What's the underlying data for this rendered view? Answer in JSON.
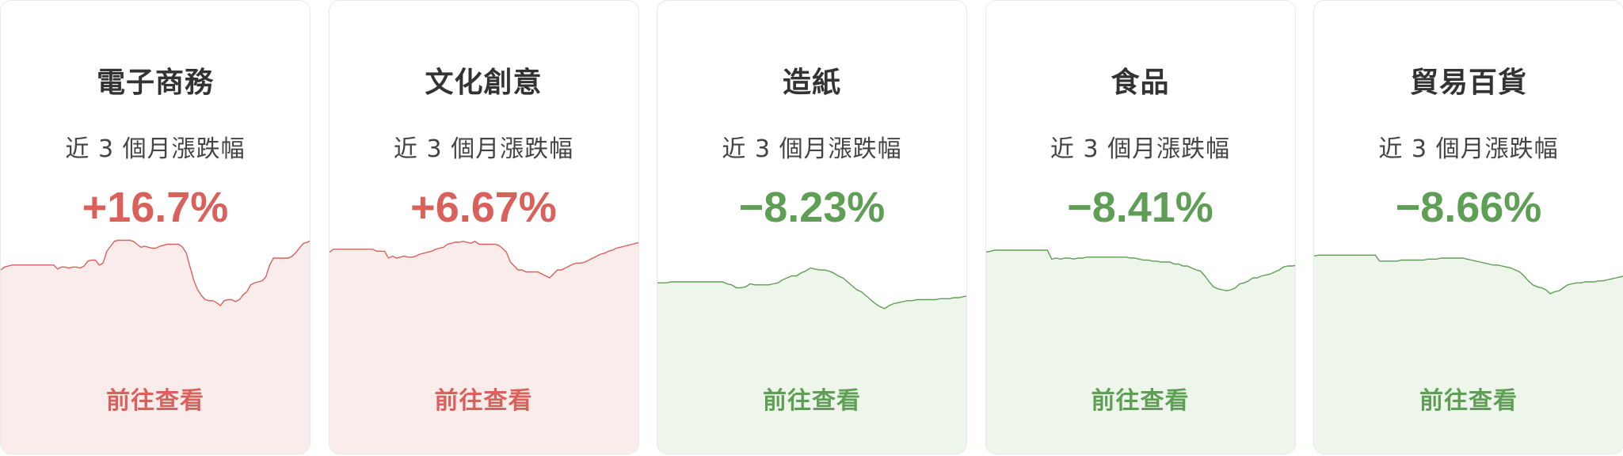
{
  "colors": {
    "up": "#d9605b",
    "up_fill": "#fbecec",
    "down": "#5f9f55",
    "down_fill": "#eef6ec"
  },
  "cards": [
    {
      "name": "電子商務",
      "subtitle": "近 3 個月漲跌幅",
      "change": "+16.7%",
      "direction": "up",
      "link_label": "前往查看",
      "sparkline": [
        48,
        51,
        52,
        53,
        53,
        53,
        53,
        53,
        53,
        53,
        53,
        53,
        53,
        53,
        53,
        49,
        51,
        51,
        50,
        51,
        51,
        50,
        52,
        57,
        58,
        58,
        53,
        55,
        67,
        72,
        77,
        78,
        78,
        78,
        78,
        77,
        74,
        71,
        72,
        71,
        70,
        70,
        72,
        73,
        74,
        74,
        74,
        74,
        71,
        65,
        51,
        37,
        28,
        22,
        18,
        17,
        17,
        15,
        12,
        17,
        18,
        18,
        16,
        18,
        23,
        26,
        33,
        35,
        36,
        37,
        41,
        53,
        60,
        60,
        60,
        60,
        60,
        62,
        66,
        71,
        75,
        76,
        78
      ]
    },
    {
      "name": "文化創意",
      "subtitle": "近 3 個月漲跌幅",
      "change": "+6.67%",
      "direction": "up",
      "link_label": "前往查看",
      "sparkline": [
        66,
        69,
        69,
        69,
        69,
        69,
        69,
        69,
        69,
        69,
        69,
        69,
        67,
        67,
        67,
        60,
        62,
        60,
        61,
        62,
        61,
        61,
        62,
        64,
        65,
        66,
        67,
        69,
        70,
        71,
        74,
        75,
        76,
        76,
        77,
        76,
        75,
        77,
        74,
        74,
        74,
        74,
        74,
        73,
        70,
        66,
        56,
        52,
        48,
        48,
        46,
        46,
        46,
        46,
        44,
        42,
        40,
        44,
        48,
        48,
        50,
        52,
        54,
        55,
        55,
        56,
        58,
        60,
        62,
        64,
        65,
        67,
        68,
        70,
        71,
        72,
        73,
        74,
        75,
        76
      ]
    },
    {
      "name": "造紙",
      "subtitle": "近 3 個月漲跌幅",
      "change": "−8.23%",
      "direction": "down",
      "link_label": "前往查看",
      "sparkline": [
        35,
        35,
        35,
        36,
        36,
        36,
        36,
        36,
        36,
        36,
        36,
        36,
        36,
        36,
        36,
        34,
        33,
        30,
        30,
        31,
        34,
        33,
        33,
        33,
        33,
        34,
        35,
        38,
        40,
        42,
        42,
        45,
        47,
        50,
        49,
        48,
        48,
        47,
        45,
        42,
        40,
        36,
        32,
        28,
        26,
        22,
        18,
        14,
        11,
        9,
        12,
        14,
        15,
        16,
        17,
        17,
        18,
        18,
        18,
        18,
        18,
        19,
        19,
        19,
        20,
        20,
        21,
        22
      ]
    },
    {
      "name": "食品",
      "subtitle": "近 3 個月漲跌幅",
      "change": "−8.41%",
      "direction": "down",
      "link_label": "前往查看",
      "sparkline": [
        66,
        67,
        68,
        68,
        68,
        68,
        68,
        68,
        68,
        68,
        68,
        68,
        68,
        68,
        68,
        59,
        60,
        59,
        60,
        60,
        59,
        60,
        60,
        61,
        61,
        61,
        61,
        61,
        61,
        61,
        61,
        61,
        61,
        60,
        60,
        59,
        58,
        58,
        57,
        57,
        56,
        56,
        56,
        54,
        54,
        52,
        52,
        50,
        48,
        47,
        42,
        36,
        31,
        29,
        28,
        27,
        28,
        30,
        34,
        35,
        37,
        40,
        40,
        42,
        43,
        44,
        46,
        48,
        51,
        52,
        52,
        53
      ]
    },
    {
      "name": "貿易百貨",
      "subtitle": "近 3 個月漲跌幅",
      "change": "−8.66%",
      "direction": "down",
      "link_label": "前往查看",
      "sparkline": [
        62,
        63,
        63,
        63,
        63,
        63,
        63,
        63,
        63,
        63,
        63,
        63,
        63,
        63,
        63,
        57,
        57,
        57,
        57,
        57,
        58,
        58,
        58,
        58,
        58,
        58,
        59,
        59,
        59,
        60,
        60,
        60,
        60,
        60,
        60,
        59,
        58,
        57,
        56,
        55,
        54,
        53,
        53,
        52,
        51,
        50,
        48,
        46,
        42,
        37,
        33,
        31,
        30,
        28,
        24,
        26,
        27,
        30,
        33,
        34,
        35,
        35,
        36,
        36,
        36,
        37,
        37,
        38,
        39,
        40,
        41,
        42
      ]
    }
  ]
}
